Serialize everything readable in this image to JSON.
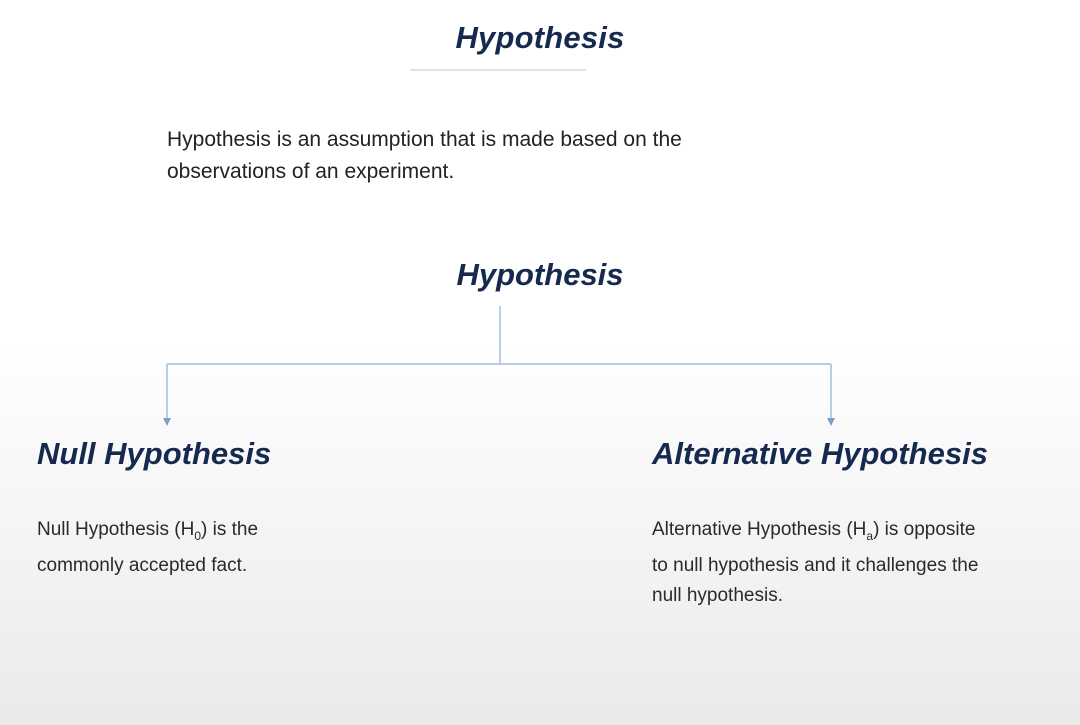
{
  "slide": {
    "title": "Hypothesis",
    "definition_line1": "Hypothesis is an assumption that is made based on the",
    "definition_line2": "observations of an experiment.",
    "diagram": {
      "root": "Hypothesis",
      "null": {
        "title": "Null  Hypothesis",
        "desc_pre": "Null Hypothesis (H",
        "desc_sub": "0",
        "desc_post_line1": ") is the",
        "desc_line2": "commonly accepted fact."
      },
      "alternative": {
        "title": "Alternative Hypothesis",
        "desc_pre": "Alternative Hypothesis (H",
        "desc_sub": "a",
        "desc_post_line1": ") is opposite",
        "desc_line2": "to null hypothesis and it challenges the",
        "desc_line3": "null hypothesis."
      }
    },
    "colors": {
      "heading": "#16294f",
      "connector": "#b8cde6"
    }
  }
}
